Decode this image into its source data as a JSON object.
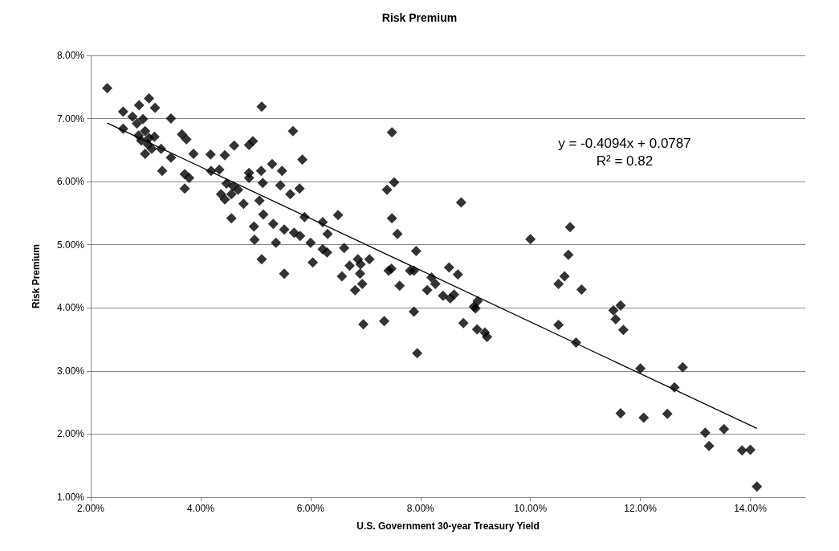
{
  "chart_data": {
    "type": "scatter",
    "title": "Risk Premium",
    "xlabel": "U.S. Government 30-year Treasury Yield",
    "ylabel": "Risk Premium",
    "annotations": [
      "y = -0.4094x + 0.0787",
      "R² = 0.82"
    ],
    "xlim": [
      2,
      15
    ],
    "ylim": [
      1,
      8
    ],
    "xticks": [
      {
        "value": 2,
        "label": "2.00%"
      },
      {
        "value": 4,
        "label": "4.00%"
      },
      {
        "value": 6,
        "label": "6.00%"
      },
      {
        "value": 8,
        "label": "8.00%"
      },
      {
        "value": 10,
        "label": "10.00%"
      },
      {
        "value": 12,
        "label": "12.00%"
      },
      {
        "value": 14,
        "label": "14.00%"
      }
    ],
    "yticks": [
      {
        "value": 1,
        "label": "1.00%"
      },
      {
        "value": 2,
        "label": "2.00%"
      },
      {
        "value": 3,
        "label": "3.00%"
      },
      {
        "value": 4,
        "label": "4.00%"
      },
      {
        "value": 5,
        "label": "5.00%"
      },
      {
        "value": 6,
        "label": "6.00%"
      },
      {
        "value": 7,
        "label": "7.00%"
      },
      {
        "value": 8,
        "label": "8.00%"
      }
    ],
    "grid": "y",
    "marker": "diamond",
    "series": [
      {
        "color": "#000000",
        "x": [
          2.3,
          2.59,
          2.88,
          3.06,
          3.17,
          2.59,
          2.76,
          2.84,
          2.95,
          3.46,
          2.87,
          2.99,
          2.92,
          3.06,
          3.16,
          2.99,
          3.11,
          3.04,
          3.28,
          3.46,
          3.3,
          3.66,
          3.74,
          3.87,
          3.71,
          3.79,
          3.71,
          4.18,
          4.44,
          4.61,
          4.88,
          4.95,
          5.11,
          4.19,
          4.34,
          4.47,
          4.59,
          4.68,
          4.37,
          4.44,
          4.56,
          4.78,
          4.56,
          4.88,
          4.88,
          5.1,
          5.13,
          5.3,
          5.48,
          5.45,
          5.8,
          5.63,
          5.68,
          5.85,
          5.07,
          5.14,
          4.97,
          4.98,
          5.32,
          5.52,
          5.7,
          5.81,
          5.89,
          6.22,
          6.31,
          6.0,
          5.37,
          6.5,
          6.22,
          6.3,
          7.48,
          7.52,
          7.39,
          7.48,
          7.58,
          8.74,
          10.72,
          10.0,
          6.61,
          7.92,
          6.86,
          7.07,
          6.71,
          6.91,
          6.57,
          6.9,
          6.94,
          6.81,
          7.47,
          7.42,
          7.81,
          7.88,
          7.62,
          8.52,
          8.68,
          8.2,
          8.27,
          8.12,
          8.41,
          8.54,
          8.61,
          9.04,
          8.97,
          9.0,
          10.69,
          10.62,
          10.51,
          10.93,
          7.88,
          6.96,
          7.34,
          8.78,
          9.03,
          9.17,
          9.21,
          10.51,
          10.83,
          7.94,
          5.11,
          5.52,
          6.04,
          11.51,
          11.64,
          11.55,
          11.69,
          12.0,
          12.77,
          12.62,
          11.64,
          12.06,
          12.49,
          13.18,
          13.25,
          13.52,
          13.85,
          14.0,
          14.12
        ],
        "values": [
          7.48,
          7.11,
          7.21,
          7.32,
          7.17,
          6.84,
          7.03,
          6.92,
          6.99,
          7.0,
          6.73,
          6.8,
          6.65,
          6.69,
          6.71,
          6.44,
          6.52,
          6.59,
          6.52,
          6.38,
          6.17,
          6.75,
          6.67,
          6.44,
          6.12,
          6.06,
          5.89,
          6.43,
          6.42,
          6.57,
          6.58,
          6.64,
          7.19,
          6.17,
          6.19,
          5.97,
          5.93,
          5.87,
          5.8,
          5.72,
          5.8,
          5.65,
          5.42,
          6.14,
          6.06,
          6.17,
          5.98,
          6.28,
          6.17,
          5.94,
          5.89,
          5.8,
          6.8,
          6.35,
          5.7,
          5.48,
          5.29,
          5.08,
          5.33,
          5.24,
          5.19,
          5.14,
          5.44,
          5.36,
          5.17,
          5.03,
          5.03,
          5.47,
          4.93,
          4.88,
          6.78,
          5.99,
          5.87,
          5.42,
          5.17,
          5.67,
          5.28,
          5.09,
          4.95,
          4.9,
          4.77,
          4.77,
          4.67,
          4.69,
          4.5,
          4.54,
          4.38,
          4.28,
          4.62,
          4.59,
          4.59,
          4.59,
          4.35,
          4.64,
          4.53,
          4.48,
          4.38,
          4.28,
          4.19,
          4.15,
          4.21,
          4.11,
          4.02,
          3.99,
          4.84,
          4.5,
          4.38,
          4.29,
          3.94,
          3.74,
          3.79,
          3.76,
          3.66,
          3.61,
          3.54,
          3.73,
          3.45,
          3.28,
          4.77,
          4.54,
          4.72,
          3.96,
          4.04,
          3.82,
          3.65,
          3.04,
          3.06,
          2.74,
          2.33,
          2.26,
          2.32,
          2.02,
          1.81,
          2.08,
          1.74,
          1.75,
          1.17
        ]
      },
      {
        "type": "line",
        "color": "#000000",
        "x": [
          2.3,
          14.12
        ],
        "values": [
          6.93,
          2.09
        ],
        "marker": "none",
        "line_style": "solid"
      }
    ]
  }
}
